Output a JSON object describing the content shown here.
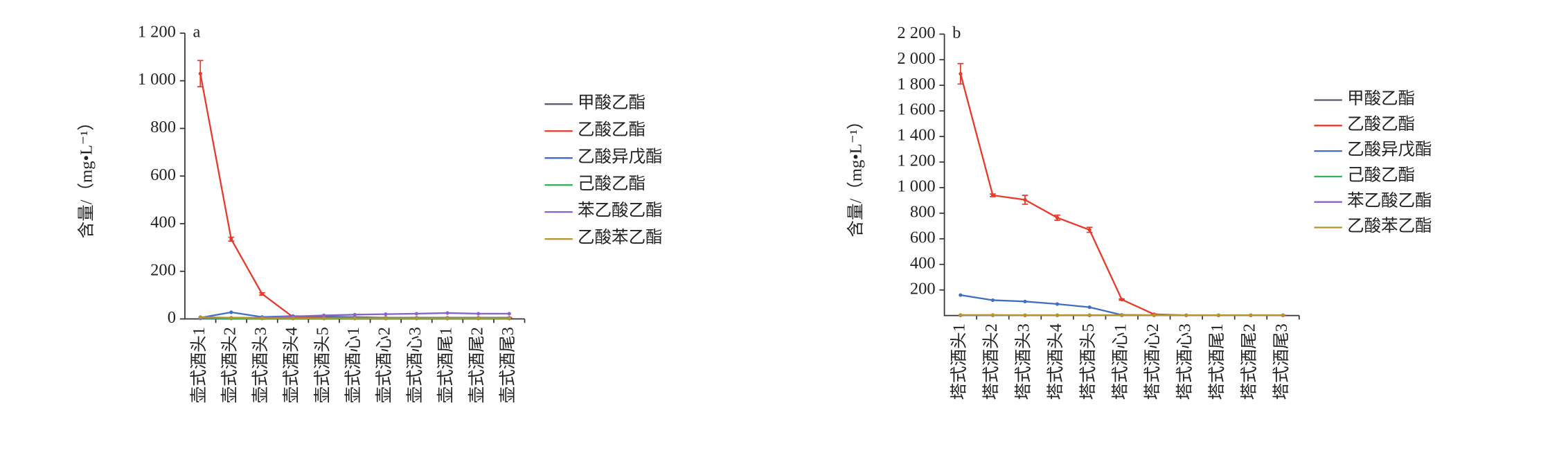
{
  "chart_data": [
    {
      "type": "line",
      "label": "a",
      "ylabel": "含量/（mg•L⁻¹）",
      "categories": [
        "壶式酒头1",
        "壶式酒头2",
        "壶式酒头3",
        "壶式酒头4",
        "壶式酒头5",
        "壶式酒心1",
        "壶式酒心2",
        "壶式酒心3",
        "壶式酒尾1",
        "壶式酒尾2",
        "壶式酒尾3"
      ],
      "ylim": [
        0,
        1200
      ],
      "yticks": [
        0,
        200,
        400,
        600,
        800,
        {
          "value": 1000,
          "label": "1 000"
        },
        {
          "value": 1200,
          "label": "1 200"
        }
      ],
      "series": [
        {
          "name": "甲酸乙酯",
          "color": "#555a6e",
          "values": [
            5,
            3,
            2,
            2,
            2,
            2,
            2,
            2,
            2,
            2,
            2
          ]
        },
        {
          "name": "乙酸乙酯",
          "color": "#e8392b",
          "values": [
            1030,
            335,
            105,
            8,
            8,
            5,
            5,
            5,
            5,
            5,
            5
          ],
          "errors": [
            55,
            8,
            5,
            1,
            1,
            1,
            1,
            1,
            1,
            1,
            1
          ]
        },
        {
          "name": "乙酸异戊酯",
          "color": "#3f6fc4",
          "values": [
            5,
            28,
            8,
            12,
            10,
            8,
            5,
            5,
            5,
            5,
            5
          ]
        },
        {
          "name": "己酸乙酯",
          "color": "#3bb05a",
          "values": [
            2,
            2,
            2,
            2,
            2,
            2,
            2,
            2,
            2,
            2,
            2
          ]
        },
        {
          "name": "苯乙酸乙酯",
          "color": "#8a63c9",
          "values": [
            3,
            5,
            5,
            10,
            15,
            18,
            20,
            22,
            25,
            22,
            22
          ]
        },
        {
          "name": "乙酸苯乙酯",
          "color": "#b8932a",
          "values": [
            8,
            5,
            3,
            3,
            3,
            3,
            3,
            3,
            3,
            3,
            3
          ]
        }
      ]
    },
    {
      "type": "line",
      "label": "b",
      "ylabel": "含量/（mg•L⁻¹）",
      "categories": [
        "塔式酒头1",
        "塔式酒头2",
        "塔式酒头3",
        "塔式酒头4",
        "塔式酒头5",
        "塔式酒心1",
        "塔式酒心2",
        "塔式酒心3",
        "塔式酒尾1",
        "塔式酒尾2",
        "塔式酒尾3"
      ],
      "ylim": [
        0,
        2200
      ],
      "yticks": [
        200,
        400,
        600,
        800,
        {
          "value": 1000,
          "label": "1 000"
        },
        {
          "value": 1200,
          "label": "1 200"
        },
        {
          "value": 1400,
          "label": "1 400"
        },
        {
          "value": 1600,
          "label": "1 600"
        },
        {
          "value": 1800,
          "label": "1 800"
        },
        {
          "value": 2000,
          "label": "2 000"
        },
        {
          "value": 2200,
          "label": "2 200"
        }
      ],
      "series": [
        {
          "name": "甲酸乙酯",
          "color": "#555a6e",
          "values": [
            3,
            3,
            2,
            2,
            2,
            2,
            2,
            2,
            2,
            2,
            2
          ]
        },
        {
          "name": "乙酸乙酯",
          "color": "#e8392b",
          "values": [
            1890,
            940,
            905,
            765,
            670,
            125,
            10,
            2,
            2,
            2,
            2
          ],
          "errors": [
            80,
            10,
            35,
            20,
            20,
            5,
            2,
            1,
            1,
            1,
            1
          ]
        },
        {
          "name": "乙酸异戊酯",
          "color": "#3f6fc4",
          "values": [
            160,
            120,
            110,
            90,
            65,
            5,
            2,
            2,
            2,
            2,
            2
          ]
        },
        {
          "name": "己酸乙酯",
          "color": "#3bb05a",
          "values": [
            2,
            2,
            2,
            2,
            2,
            2,
            2,
            2,
            2,
            2,
            2
          ]
        },
        {
          "name": "苯乙酸乙酯",
          "color": "#8a63c9",
          "values": [
            2,
            2,
            2,
            2,
            2,
            2,
            2,
            2,
            2,
            2,
            2
          ]
        },
        {
          "name": "乙酸苯乙酯",
          "color": "#b8932a",
          "values": [
            4,
            4,
            3,
            3,
            3,
            3,
            3,
            3,
            3,
            3,
            3
          ]
        }
      ]
    }
  ]
}
